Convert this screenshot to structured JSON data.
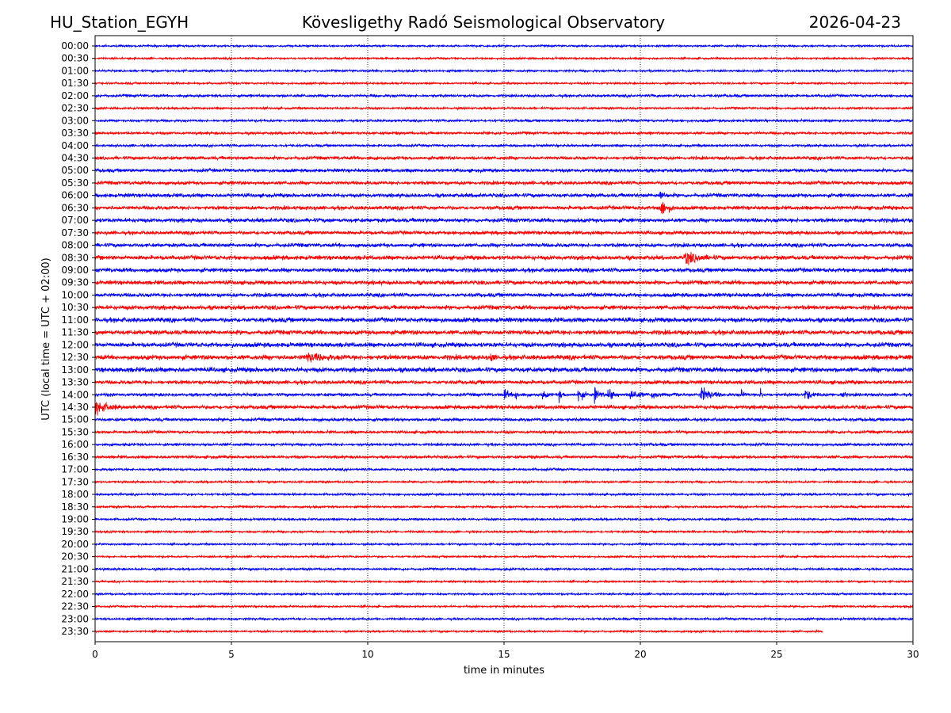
{
  "header": {
    "station": "HU_Station_EGYH",
    "title": "Kövesligethy Radó Seismological Observatory",
    "date": "2026-04-23"
  },
  "chart_data": {
    "type": "line",
    "title": "Kövesligethy Radó Seismological Observatory",
    "xlabel": "time in minutes",
    "ylabel": "UTC (local time = UTC + 02:00)",
    "xlim": [
      0,
      30
    ],
    "xticks": [
      0,
      5,
      10,
      15,
      20,
      25,
      30
    ],
    "grid": "vertical dotted at x ticks",
    "colors": [
      "#0000ff",
      "#ff0000"
    ],
    "rows": [
      "00:00",
      "00:30",
      "01:00",
      "01:30",
      "02:00",
      "02:30",
      "03:00",
      "03:30",
      "04:00",
      "04:30",
      "05:00",
      "05:30",
      "06:00",
      "06:30",
      "07:00",
      "07:30",
      "08:00",
      "08:30",
      "09:00",
      "09:30",
      "10:00",
      "10:30",
      "11:00",
      "11:30",
      "12:00",
      "12:30",
      "13:00",
      "13:30",
      "14:00",
      "14:30",
      "15:00",
      "15:30",
      "16:00",
      "16:30",
      "17:00",
      "17:30",
      "18:00",
      "18:30",
      "19:00",
      "19:30",
      "20:00",
      "20:30",
      "21:00",
      "21:30",
      "22:00",
      "22:30",
      "23:00",
      "23:30"
    ],
    "noise_level": [
      0.8,
      0.8,
      0.9,
      0.8,
      1.1,
      0.9,
      1.0,
      1.1,
      1.0,
      1.4,
      1.4,
      1.5,
      1.6,
      1.6,
      1.7,
      1.5,
      1.6,
      1.8,
      1.7,
      1.7,
      1.6,
      1.8,
      1.9,
      1.9,
      1.9,
      2.0,
      2.0,
      1.6,
      1.3,
      1.6,
      1.3,
      1.2,
      1.1,
      1.2,
      1.0,
      0.9,
      0.9,
      0.9,
      0.9,
      0.9,
      0.8,
      0.8,
      0.9,
      0.8,
      0.8,
      0.8,
      0.9,
      0.8
    ],
    "last_trace_end_min": 26.7,
    "events": [
      {
        "row": 12,
        "t": 20.7,
        "amp": 6,
        "dur": 0.3
      },
      {
        "row": 13,
        "t": 20.7,
        "amp": 10,
        "dur": 0.6
      },
      {
        "row": 17,
        "t": 21.6,
        "amp": 6,
        "dur": 1.2
      },
      {
        "row": 25,
        "t": 7.7,
        "amp": 4,
        "dur": 1.5
      },
      {
        "row": 25,
        "t": 14.5,
        "amp": 6,
        "dur": 0.2
      },
      {
        "row": 29,
        "t": 0.0,
        "amp": 7,
        "dur": 1.0
      },
      {
        "row": 28,
        "t": 15.0,
        "amp": 6,
        "dur": 0.4
      },
      {
        "row": 28,
        "t": 15.4,
        "amp": 5,
        "dur": 0.3
      },
      {
        "row": 28,
        "t": 16.4,
        "amp": 5,
        "dur": 0.3
      },
      {
        "row": 28,
        "t": 17.0,
        "amp": 5,
        "dur": 0.3
      },
      {
        "row": 28,
        "t": 17.7,
        "amp": 8,
        "dur": 0.4
      },
      {
        "row": 28,
        "t": 18.3,
        "amp": 8,
        "dur": 0.4
      },
      {
        "row": 28,
        "t": 18.8,
        "amp": 8,
        "dur": 0.5
      },
      {
        "row": 28,
        "t": 19.6,
        "amp": 6,
        "dur": 0.7
      },
      {
        "row": 28,
        "t": 20.4,
        "amp": 5,
        "dur": 0.4
      },
      {
        "row": 28,
        "t": 21.2,
        "amp": 4,
        "dur": 0.3
      },
      {
        "row": 28,
        "t": 22.2,
        "amp": 8,
        "dur": 0.8
      },
      {
        "row": 28,
        "t": 23.7,
        "amp": 5,
        "dur": 0.2
      },
      {
        "row": 28,
        "t": 24.4,
        "amp": 6,
        "dur": 0.2
      },
      {
        "row": 28,
        "t": 26.0,
        "amp": 5,
        "dur": 0.7
      },
      {
        "row": 28,
        "t": 27.3,
        "amp": 6,
        "dur": 0.3
      }
    ]
  }
}
